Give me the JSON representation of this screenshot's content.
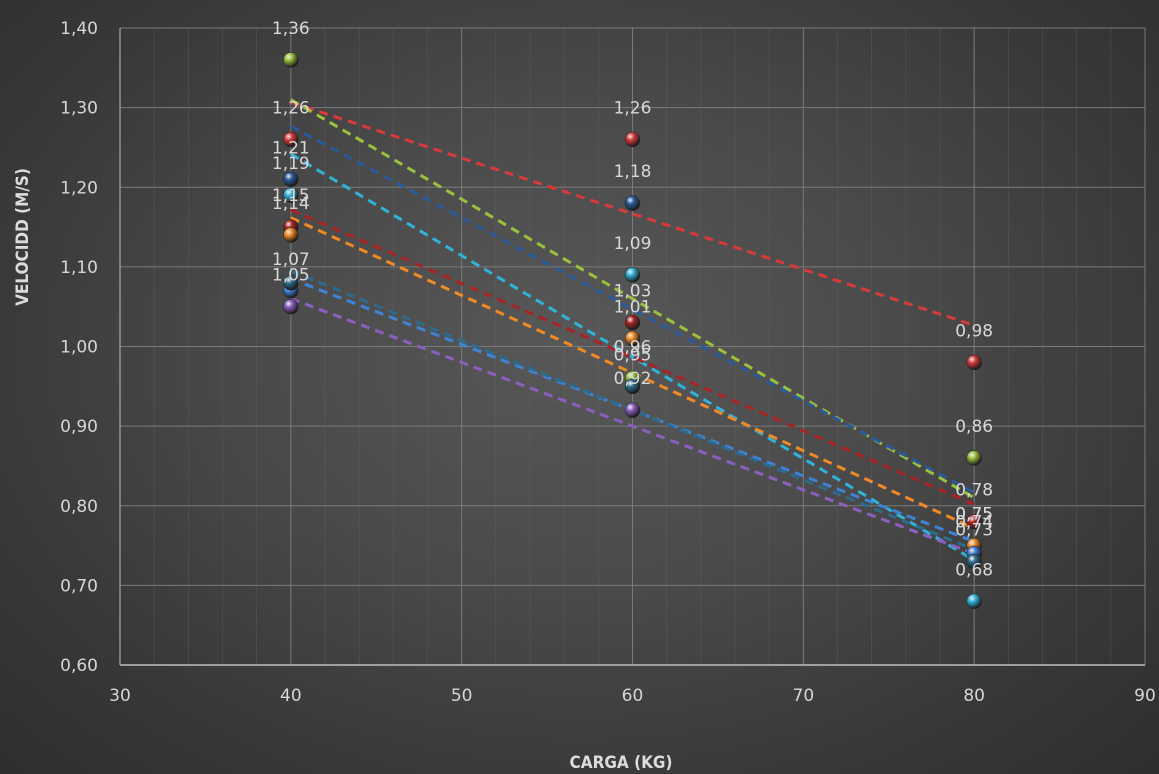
{
  "chart_data": {
    "type": "scatter",
    "xlabel": "CARGA (KG)",
    "ylabel": "VELOCIDD (M/S)",
    "xlim": [
      30,
      90
    ],
    "ylim": [
      0.6,
      1.4
    ],
    "x_ticks": [
      "30",
      "40",
      "50",
      "60",
      "70",
      "80",
      "90"
    ],
    "y_ticks": [
      "0,60",
      "0,70",
      "0,80",
      "0,90",
      "1,00",
      "1,10",
      "1,20",
      "1,30",
      "1,40"
    ],
    "grid": true,
    "trendlines": "linear, dashed",
    "x": [
      40,
      60,
      80
    ],
    "series": [
      {
        "color": "#d63a3a",
        "values": [
          1.26,
          1.26,
          0.98
        ],
        "labels": [
          "1,26",
          "1,26",
          "0,98"
        ]
      },
      {
        "color": "#9bc13c",
        "values": [
          1.36,
          0.96,
          0.86
        ],
        "labels": [
          "1,36",
          "0,96",
          "0,86"
        ]
      },
      {
        "color": "#2b5a9a",
        "values": [
          1.21,
          1.18,
          0.75
        ],
        "labels": [
          "1,21",
          "1,18",
          "0,75"
        ]
      },
      {
        "color": "#2fb3d9",
        "values": [
          1.19,
          1.09,
          0.68
        ],
        "labels": [
          "1,19",
          "1,09",
          "0,68"
        ]
      },
      {
        "color": "#a82424",
        "values": [
          1.15,
          1.03,
          0.78
        ],
        "labels": [
          "1,15",
          "1,03",
          "0,78"
        ]
      },
      {
        "color": "#f08a24",
        "values": [
          1.14,
          1.01,
          0.75
        ],
        "labels": [
          "1,14",
          "1,01",
          "0,75"
        ]
      },
      {
        "color": "#3f83d6",
        "values": [
          1.07,
          0.95,
          0.74
        ],
        "labels": [
          "1,07",
          "0,95",
          "0,74"
        ]
      },
      {
        "color": "#8b5fbf",
        "values": [
          1.05,
          0.92,
          0.73
        ],
        "labels": [
          "1,05",
          "0,92",
          "0,73"
        ]
      },
      {
        "color": "#2e6b8a",
        "values": [
          1.08,
          0.95,
          0.73
        ],
        "labels": [
          "",
          "",
          ""
        ]
      }
    ]
  }
}
